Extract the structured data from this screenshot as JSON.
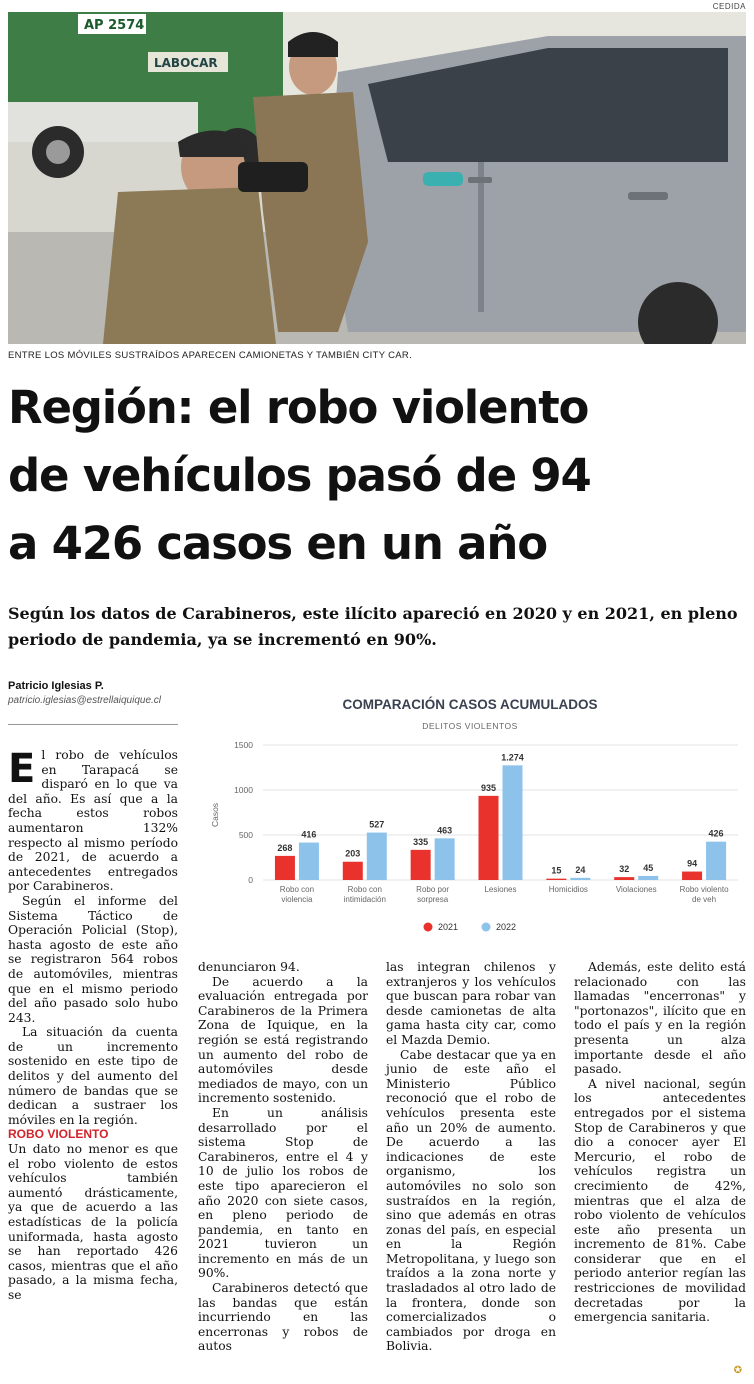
{
  "photo": {
    "credit": "CEDIDA",
    "truck_plate": "AP 2574",
    "truck_label": "LABOCAR",
    "caption": "ENTRE LOS MÓVILES SUSTRAÍDOS APARECEN CAMIONETAS Y TAMBIÉN CITY CAR."
  },
  "headline": [
    "Región: el robo violento",
    "de vehículos pasó de 94",
    "a 426 casos en un año"
  ],
  "subhead": "Según los datos de Carabineros, este ilícito apareció en 2020 y en 2021, en pleno periodo de pandemia, ya se incrementó en 90%.",
  "byline": {
    "author": "Patricio Iglesias P.",
    "email": "patricio.iglesias@estrellaiquique.cl"
  },
  "colors": {
    "series_2021": "#e8322b",
    "series_2022": "#8dc3ea",
    "kicker": "#d2232a"
  },
  "chart_data": {
    "type": "bar",
    "title": "COMPARACIÓN CASOS ACUMULADOS",
    "subtitle": "DELITOS VIOLENTOS",
    "ylabel": "Casos",
    "ylim": [
      0,
      1500
    ],
    "yticks": [
      "0",
      "500",
      "1000",
      "1500"
    ],
    "categories": [
      [
        "Robo con",
        "violencia"
      ],
      [
        "Robo con",
        "intimidación"
      ],
      [
        "Robo por",
        "sorpresa"
      ],
      [
        "Lesiones"
      ],
      [
        "Homicidios"
      ],
      [
        "Violaciones"
      ],
      [
        "Robo violento",
        "de veh"
      ]
    ],
    "series": [
      {
        "name": "2021",
        "values": [
          268,
          203,
          335,
          935,
          15,
          32,
          94
        ],
        "labels": [
          "268",
          "203",
          "335",
          "935",
          "15",
          "32",
          "94"
        ]
      },
      {
        "name": "2022",
        "values": [
          416,
          527,
          463,
          1274,
          24,
          45,
          426
        ],
        "labels": [
          "416",
          "527",
          "463",
          "1.274",
          "24",
          "45",
          "426"
        ]
      }
    ]
  },
  "body": {
    "col1": {
      "dropcap": "E",
      "p1": "l robo de vehículos en Tarapacá se disparó en lo que va del año. Es así que a la fecha estos robos aumentaron 132% respecto al mismo período de 2021, de acuerdo a antecedentes entregados por Carabineros.",
      "p2": "Según el informe del Sistema Táctico de Operación Policial (Stop), hasta agosto de este año se registraron 564 robos de automóviles, mientras que en el mismo periodo del año pasado solo hubo 243.",
      "p3": "La situación da cuenta de un incremento sostenido en este tipo de delitos y del aumento del número de bandas que se dedican a sustraer los móviles en la región.",
      "kicker": "ROBO VIOLENTO",
      "p4": "Un dato no menor es que el robo violento de estos vehículos también aumentó drásticamente, ya que de acuerdo a las estadísticas de la policía uniformada, hasta agosto se han reportado 426 casos, mientras que el año pasado, a la misma fecha, se"
    },
    "col2": {
      "p1": "denunciaron 94.",
      "p2": "De acuerdo a la evaluación entregada por Carabineros de la Primera Zona de Iquique, en la región se está registrando un aumento del robo de automóviles desde mediados de mayo, con un incremento sostenido.",
      "p3": "En un análisis desarrollado por el sistema Stop de Carabineros, entre el 4 y 10 de julio los robos de este tipo aparecieron el año 2020 con siete casos, en pleno periodo de pandemia, en tanto en 2021 tuvieron un incremento en más de un 90%.",
      "p4": "Carabineros detectó que las bandas que están incurriendo en las encerronas y robos de autos"
    },
    "col3": {
      "p1": "las integran chilenos y extranjeros y los vehículos que buscan para robar van desde camionetas de alta gama hasta city car, como el Mazda Demio.",
      "p2": "Cabe destacar que ya en junio de este año el Ministerio Público reconoció que el robo de vehículos presenta este año un 20% de aumento. De acuerdo a las indicaciones de este organismo, los automóviles no solo son sustraídos en la región, sino que además en otras zonas del país, en especial en la Región Metropolitana, y luego son traídos a la zona norte y trasladados al otro lado de la frontera, donde son comercializados o cambiados por droga en Bolivia."
    },
    "col4": {
      "p1": "Además, este delito está relacionado con las llamadas \"encerronas\" y \"portonazos\", ilícito que en todo el país y en la región presenta un alza importante desde el año pasado.",
      "p2": "A nivel nacional, según los antecedentes entregados por el sistema Stop de Carabineros y que dio a conocer ayer El Mercurio, el robo de vehículos registra un crecimiento de 42%, mientras que el alza de robo violento de vehículos este año presenta un incremento de 81%. Cabe considerar que en el periodo anterior regían las restricciones de movilidad decretadas por la emergencia sanitaria."
    }
  }
}
